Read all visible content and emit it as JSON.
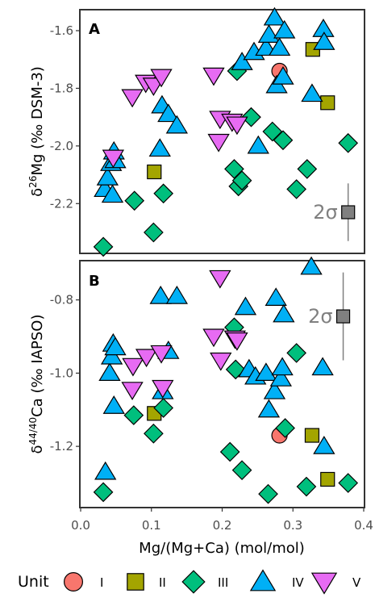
{
  "chart_data": [
    {
      "panel": "A",
      "type": "scatter",
      "xlabel": "Mg/(Mg+Ca) (mol/mol)",
      "ylabel_main": "δ",
      "ylabel_sup": "26",
      "ylabel_rest": "Mg (‰ DSM-3)",
      "ylim": [
        -2.37,
        -1.53
      ],
      "y_ticks": [
        -1.6,
        -1.8,
        -2.0,
        -2.2
      ],
      "y_tick_labels": [
        "-1.6",
        "-1.8",
        "-2.0",
        "-2.2"
      ],
      "error_bar": {
        "label": "2σ",
        "x": 0.378,
        "y": -2.23,
        "half_range": 0.1
      },
      "series": [
        {
          "name": "I",
          "points": [
            [
              0.281,
              -1.74
            ]
          ]
        },
        {
          "name": "II",
          "points": [
            [
              0.104,
              -2.09
            ],
            [
              0.328,
              -1.665
            ],
            [
              0.349,
              -1.85
            ]
          ]
        },
        {
          "name": "III",
          "points": [
            [
              0.032,
              -2.35
            ],
            [
              0.076,
              -2.19
            ],
            [
              0.103,
              -2.3
            ],
            [
              0.117,
              -2.165
            ],
            [
              0.217,
              -2.08
            ],
            [
              0.223,
              -2.14
            ],
            [
              0.221,
              -1.74
            ],
            [
              0.228,
              -2.12
            ],
            [
              0.241,
              -1.9
            ],
            [
              0.271,
              -1.95
            ],
            [
              0.286,
              -1.98
            ],
            [
              0.305,
              -2.15
            ],
            [
              0.32,
              -2.08
            ],
            [
              0.378,
              -1.99
            ]
          ]
        },
        {
          "name": "IV",
          "points": [
            [
              0.034,
              -2.15
            ],
            [
              0.038,
              -2.11
            ],
            [
              0.043,
              -2.06
            ],
            [
              0.045,
              -2.17
            ],
            [
              0.047,
              -2.02
            ],
            [
              0.049,
              -2.05
            ],
            [
              0.112,
              -2.01
            ],
            [
              0.115,
              -1.86
            ],
            [
              0.124,
              -1.89
            ],
            [
              0.136,
              -1.93
            ],
            [
              0.228,
              -1.71
            ],
            [
              0.245,
              -1.675
            ],
            [
              0.251,
              -2.0
            ],
            [
              0.262,
              -1.66
            ],
            [
              0.266,
              -1.615
            ],
            [
              0.274,
              -1.555
            ],
            [
              0.277,
              -1.79
            ],
            [
              0.281,
              -1.66
            ],
            [
              0.286,
              -1.76
            ],
            [
              0.288,
              -1.6
            ],
            [
              0.327,
              -1.82
            ],
            [
              0.343,
              -1.595
            ],
            [
              0.344,
              -1.64
            ]
          ]
        },
        {
          "name": "V",
          "points": [
            [
              0.073,
              -1.83
            ],
            [
              0.092,
              -1.78
            ],
            [
              0.103,
              -1.79
            ],
            [
              0.114,
              -1.76
            ],
            [
              0.188,
              -1.755
            ],
            [
              0.195,
              -1.985
            ],
            [
              0.197,
              -1.905
            ],
            [
              0.214,
              -1.915
            ],
            [
              0.221,
              -1.925
            ],
            [
              0.046,
              -2.04
            ]
          ]
        }
      ]
    },
    {
      "panel": "B",
      "type": "scatter",
      "xlabel": "Mg/(Mg+Ca) (mol/mol)",
      "ylabel_main": "δ",
      "ylabel_sup": "44/40",
      "ylabel_rest": "Ca (‰ IAPSO)",
      "ylim": [
        -1.365,
        -0.695
      ],
      "y_ticks": [
        -0.8,
        -1.0,
        -1.2
      ],
      "y_tick_labels": [
        "-0.8",
        "-1.0",
        "-1.2"
      ],
      "error_bar": {
        "label": "2σ",
        "x": 0.371,
        "y": -0.845,
        "half_range": 0.12
      },
      "series": [
        {
          "name": "I",
          "points": [
            [
              0.281,
              -1.17
            ]
          ]
        },
        {
          "name": "II",
          "points": [
            [
              0.104,
              -1.11
            ],
            [
              0.327,
              -1.17
            ],
            [
              0.349,
              -1.29
            ]
          ]
        },
        {
          "name": "III",
          "points": [
            [
              0.032,
              -1.325
            ],
            [
              0.075,
              -1.115
            ],
            [
              0.103,
              -1.165
            ],
            [
              0.117,
              -1.095
            ],
            [
              0.211,
              -1.215
            ],
            [
              0.217,
              -0.875
            ],
            [
              0.219,
              -0.99
            ],
            [
              0.228,
              -1.265
            ],
            [
              0.265,
              -1.33
            ],
            [
              0.289,
              -1.15
            ],
            [
              0.305,
              -0.945
            ],
            [
              0.319,
              -1.31
            ],
            [
              0.378,
              -1.3
            ]
          ]
        },
        {
          "name": "IV",
          "points": [
            [
              0.035,
              -1.27
            ],
            [
              0.041,
              -1.0
            ],
            [
              0.044,
              -0.955
            ],
            [
              0.046,
              -0.92
            ],
            [
              0.047,
              -1.09
            ],
            [
              0.049,
              -0.93
            ],
            [
              0.116,
              -1.05
            ],
            [
              0.113,
              -0.79
            ],
            [
              0.124,
              -0.94
            ],
            [
              0.136,
              -0.79
            ],
            [
              0.233,
              -0.82
            ],
            [
              0.238,
              -0.99
            ],
            [
              0.247,
              -1.01
            ],
            [
              0.262,
              -1.0
            ],
            [
              0.266,
              -1.1
            ],
            [
              0.274,
              -1.05
            ],
            [
              0.276,
              -0.795
            ],
            [
              0.283,
              -1.015
            ],
            [
              0.287,
              -0.84
            ],
            [
              0.285,
              -0.985
            ],
            [
              0.326,
              -0.71
            ],
            [
              0.342,
              -0.985
            ],
            [
              0.344,
              -1.2
            ]
          ]
        },
        {
          "name": "V",
          "points": [
            [
              0.074,
              -0.98
            ],
            [
              0.093,
              -0.955
            ],
            [
              0.073,
              -1.045
            ],
            [
              0.114,
              -0.945
            ],
            [
              0.116,
              -1.04
            ],
            [
              0.188,
              -0.9
            ],
            [
              0.197,
              -0.74
            ],
            [
              0.198,
              -0.965
            ],
            [
              0.218,
              -0.905
            ],
            [
              0.221,
              -0.91
            ]
          ]
        }
      ]
    }
  ],
  "x_axis": {
    "label": "Mg/(Mg+Ca) (mol/mol)",
    "xlim": [
      0.0,
      0.4
    ],
    "ticks": [
      0.0,
      0.1,
      0.2,
      0.3,
      0.4
    ],
    "tick_labels": [
      "0.0",
      "0.1",
      "0.2",
      "0.3",
      "0.4"
    ]
  },
  "legend": {
    "title": "Unit",
    "placement": "bottom",
    "items": [
      {
        "label": "I",
        "shape": "circle",
        "color": "#F8766D"
      },
      {
        "label": "II",
        "shape": "square",
        "color": "#A3A500"
      },
      {
        "label": "III",
        "shape": "diamond",
        "color": "#00BF7D"
      },
      {
        "label": "IV",
        "shape": "triangle-up",
        "color": "#00B0F6"
      },
      {
        "label": "V",
        "shape": "triangle-down",
        "color": "#E76BF3"
      }
    ]
  },
  "colors": {
    "I": "#F8766D",
    "II": "#A3A500",
    "III": "#00BF7D",
    "IV": "#00B0F6",
    "V": "#E76BF3",
    "error_marker": "#808080",
    "panel_border": "#333333"
  }
}
